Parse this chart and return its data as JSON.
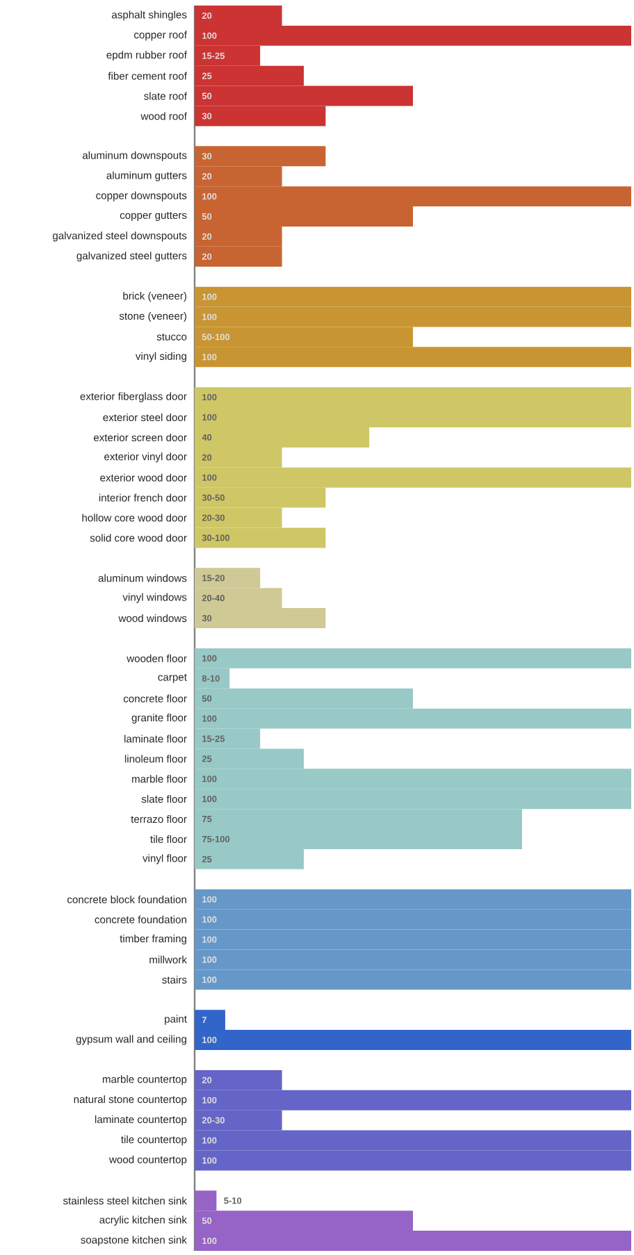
{
  "chart_data": {
    "type": "bar",
    "orientation": "horizontal",
    "categories": [
      "asphalt shingles",
      "copper roof",
      "epdm rubber roof",
      "fiber cement roof",
      "slate roof",
      "wood roof",
      null,
      "aluminum downspouts",
      "aluminum gutters",
      "copper downspouts",
      "copper gutters",
      "galvanized steel downspouts",
      "galvanized steel gutters",
      null,
      "brick (veneer)",
      "stone (veneer)",
      "stucco",
      "vinyl siding",
      null,
      "exterior fiberglass door",
      "exterior steel door",
      "exterior screen door",
      "exterior vinyl door",
      "exterior wood door",
      "interior french door",
      "hollow core wood door",
      "solid core wood door",
      null,
      "aluminum windows",
      "vinyl windows",
      "wood windows",
      null,
      "wooden floor",
      "carpet",
      "concrete floor",
      "granite floor",
      "laminate floor",
      "linoleum floor",
      "marble floor",
      "slate floor",
      "terrazo floor",
      "tile floor",
      "vinyl floor",
      null,
      "concrete block foundation",
      "concrete foundation",
      "timber framing",
      "millwork",
      "stairs",
      null,
      "paint",
      "gypsum wall and ceiling",
      null,
      "marble countertop",
      "natural stone countertop",
      "laminate countertop",
      "tile countertop",
      "wood countertop",
      null,
      "stainless steel kitchen sink",
      "acrylic kitchen sink",
      "soapstone kitchen sink"
    ],
    "values": [
      20,
      100,
      15,
      25,
      50,
      30,
      null,
      30,
      20,
      100,
      50,
      20,
      20,
      null,
      100,
      100,
      50,
      100,
      null,
      100,
      100,
      40,
      20,
      100,
      30,
      20,
      30,
      null,
      15,
      20,
      30,
      null,
      100,
      8,
      50,
      100,
      15,
      25,
      100,
      100,
      75,
      75,
      25,
      null,
      100,
      100,
      100,
      100,
      100,
      null,
      7,
      100,
      null,
      20,
      100,
      20,
      100,
      100,
      null,
      5,
      50,
      100
    ],
    "value_labels": [
      "20",
      "100",
      "15-25",
      "25",
      "50",
      "30",
      null,
      "30",
      "20",
      "100",
      "50",
      "20",
      "20",
      null,
      "100",
      "100",
      "50-100",
      "100",
      null,
      "100",
      "100",
      "40",
      "20",
      "100",
      "30-50",
      "20-30",
      "30-100",
      null,
      "15-20",
      "20-40",
      "30",
      null,
      "100",
      "8-10",
      "50",
      "100",
      "15-25",
      "25",
      "100",
      "100",
      "75",
      "75-100",
      "25",
      null,
      "100",
      "100",
      "100",
      "100",
      "100",
      null,
      "7",
      "100",
      null,
      "20",
      "100",
      "20-30",
      "100",
      "100",
      null,
      "5-10",
      "50",
      "100"
    ],
    "colors": [
      "#cc3333",
      "#cc3333",
      "#cc3333",
      "#cc3333",
      "#cc3333",
      "#cc3333",
      null,
      "#c86431",
      "#c86431",
      "#c86431",
      "#c86431",
      "#c86431",
      "#c86431",
      null,
      "#c89532",
      "#c89532",
      "#c89532",
      "#c89532",
      null,
      "#cfc765",
      "#cfc765",
      "#cfc765",
      "#cfc765",
      "#cfc765",
      "#cfc765",
      "#cfc765",
      "#cfc765",
      null,
      "#cfc995",
      "#cfc995",
      "#cfc995",
      null,
      "#98c9c6",
      "#98c9c6",
      "#98c9c6",
      "#98c9c6",
      "#98c9c6",
      "#98c9c6",
      "#98c9c6",
      "#98c9c6",
      "#98c9c6",
      "#98c9c6",
      "#98c9c6",
      null,
      "#6598c9",
      "#6598c9",
      "#6598c9",
      "#6598c9",
      "#6598c9",
      null,
      "#3265c9",
      "#3265c9",
      null,
      "#6564c7",
      "#6564c7",
      "#6564c7",
      "#6564c7",
      "#6564c7",
      null,
      "#9663c6",
      "#9663c6",
      "#9663c6"
    ]
  }
}
